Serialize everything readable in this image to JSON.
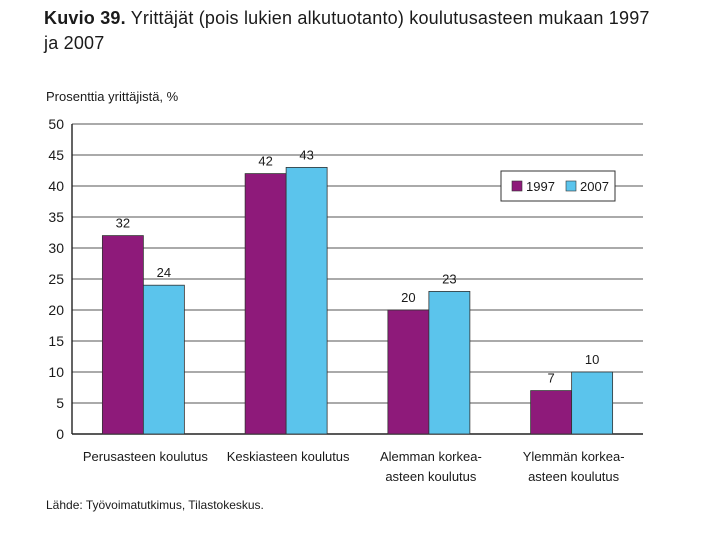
{
  "title": {
    "number": "Kuvio 39.",
    "text": "Yrittäjät (pois lukien alkutuotanto) koulutusasteen mukaan 1997 ja 2007"
  },
  "source": "Lähde: Työvoimatutkimus, Tilastokeskus.",
  "colors": {
    "s1997": "#8e1a7a",
    "s2007": "#5bc4ec"
  },
  "chart_data": {
    "type": "bar",
    "ylabel": "Prosenttia yrittäjistä, %",
    "ylim": [
      0,
      50
    ],
    "yticks": [
      0,
      5,
      10,
      15,
      20,
      25,
      30,
      35,
      40,
      45,
      50
    ],
    "grid": true,
    "legend_position": "top-right",
    "categories": [
      [
        "Perusasteen koulutus"
      ],
      [
        "Keskiasteen koulutus"
      ],
      [
        "Alemman korkea-",
        "asteen koulutus"
      ],
      [
        "Ylemmän korkea-",
        "asteen koulutus"
      ]
    ],
    "series": [
      {
        "name": "1997",
        "values": [
          32,
          42,
          20,
          7
        ]
      },
      {
        "name": "2007",
        "values": [
          24,
          43,
          23,
          10
        ]
      }
    ]
  }
}
